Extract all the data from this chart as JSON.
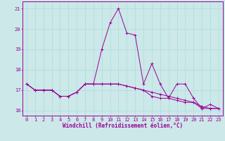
{
  "title": "",
  "xlabel": "Windchill (Refroidissement éolien,°C)",
  "background_color": "#cce8e8",
  "grid_color": "#aadddd",
  "line_color": "#990099",
  "spine_color": "#990099",
  "xlim": [
    -0.5,
    23.5
  ],
  "ylim": [
    15.75,
    21.35
  ],
  "yticks": [
    16,
    17,
    18,
    19,
    20,
    21
  ],
  "xticks": [
    0,
    1,
    2,
    3,
    4,
    5,
    6,
    7,
    8,
    9,
    10,
    11,
    12,
    13,
    14,
    15,
    16,
    17,
    18,
    19,
    20,
    21,
    22,
    23
  ],
  "series": [
    [
      17.3,
      17.0,
      17.0,
      17.0,
      16.7,
      16.7,
      16.9,
      17.3,
      17.3,
      19.0,
      20.3,
      21.0,
      19.8,
      19.7,
      17.3,
      18.3,
      17.3,
      16.6,
      17.3,
      17.3,
      16.6,
      16.1,
      16.3,
      16.1
    ],
    [
      17.3,
      17.0,
      17.0,
      17.0,
      16.7,
      16.7,
      16.9,
      17.3,
      17.3,
      17.3,
      17.3,
      17.3,
      17.2,
      17.1,
      17.0,
      16.9,
      16.8,
      16.7,
      16.6,
      16.5,
      16.4,
      16.2,
      16.1,
      16.1
    ],
    [
      17.3,
      17.0,
      17.0,
      17.0,
      16.7,
      16.7,
      16.9,
      17.3,
      17.3,
      17.3,
      17.3,
      17.3,
      17.2,
      17.1,
      17.0,
      16.7,
      16.6,
      16.6,
      16.5,
      16.4,
      16.4,
      16.1,
      16.1,
      16.1
    ]
  ],
  "tick_fontsize": 5.0,
  "xlabel_fontsize": 5.5,
  "linewidth": 0.7,
  "markersize": 3.0
}
